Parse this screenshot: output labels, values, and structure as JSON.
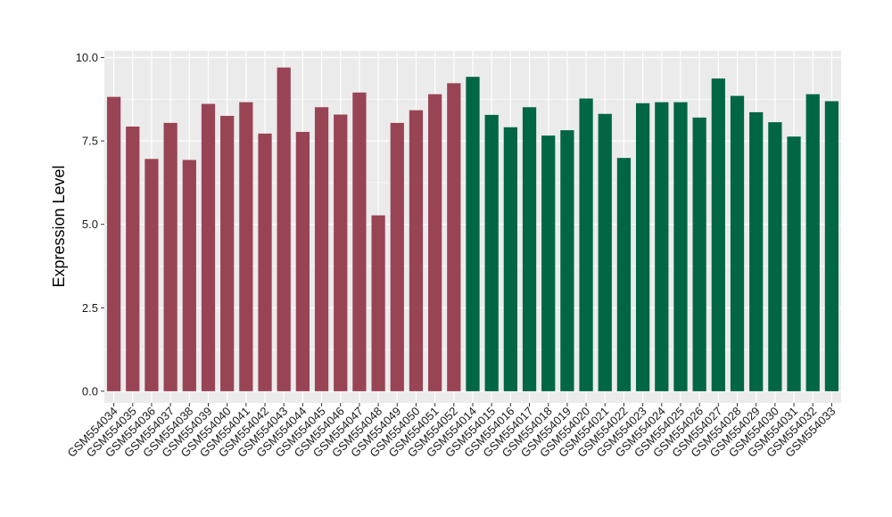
{
  "chart_data": {
    "type": "bar",
    "title": "",
    "xlabel": "",
    "ylabel": "Expression Level",
    "ylim": [
      -0.35,
      10.2
    ],
    "yticks": [
      0.0,
      2.5,
      5.0,
      7.5,
      10.0
    ],
    "ytick_labels": [
      "0.0",
      "2.5",
      "5.0",
      "7.5",
      "10.0"
    ],
    "grid": true,
    "panel_background": "#ebebeb",
    "grid_color": "#ffffff",
    "categories": [
      "GSM554034",
      "GSM554035",
      "GSM554036",
      "GSM554037",
      "GSM554038",
      "GSM554039",
      "GSM554040",
      "GSM554041",
      "GSM554042",
      "GSM554043",
      "GSM554044",
      "GSM554045",
      "GSM554046",
      "GSM554047",
      "GSM554048",
      "GSM554049",
      "GSM554050",
      "GSM554051",
      "GSM554052",
      "GSM554014",
      "GSM554015",
      "GSM554016",
      "GSM554017",
      "GSM554018",
      "GSM554019",
      "GSM554020",
      "GSM554021",
      "GSM554022",
      "GSM554023",
      "GSM554024",
      "GSM554025",
      "GSM554026",
      "GSM554027",
      "GSM554028",
      "GSM554029",
      "GSM554030",
      "GSM554031",
      "GSM554032",
      "GSM554033"
    ],
    "values": [
      8.82,
      7.93,
      6.96,
      8.04,
      6.93,
      8.61,
      8.25,
      8.66,
      7.72,
      9.7,
      7.77,
      8.51,
      8.29,
      8.95,
      5.27,
      8.04,
      8.42,
      8.9,
      9.23,
      9.42,
      8.28,
      7.91,
      8.51,
      7.66,
      7.82,
      8.77,
      8.31,
      6.99,
      8.63,
      8.66,
      8.66,
      8.2,
      9.37,
      8.85,
      8.36,
      8.06,
      7.63,
      8.9,
      8.69
    ],
    "groups": [
      0,
      0,
      0,
      0,
      0,
      0,
      0,
      0,
      0,
      0,
      0,
      0,
      0,
      0,
      0,
      0,
      0,
      0,
      0,
      1,
      1,
      1,
      1,
      1,
      1,
      1,
      1,
      1,
      1,
      1,
      1,
      1,
      1,
      1,
      1,
      1,
      1,
      1,
      1
    ],
    "group_colors": [
      "#994455",
      "#006644"
    ]
  }
}
